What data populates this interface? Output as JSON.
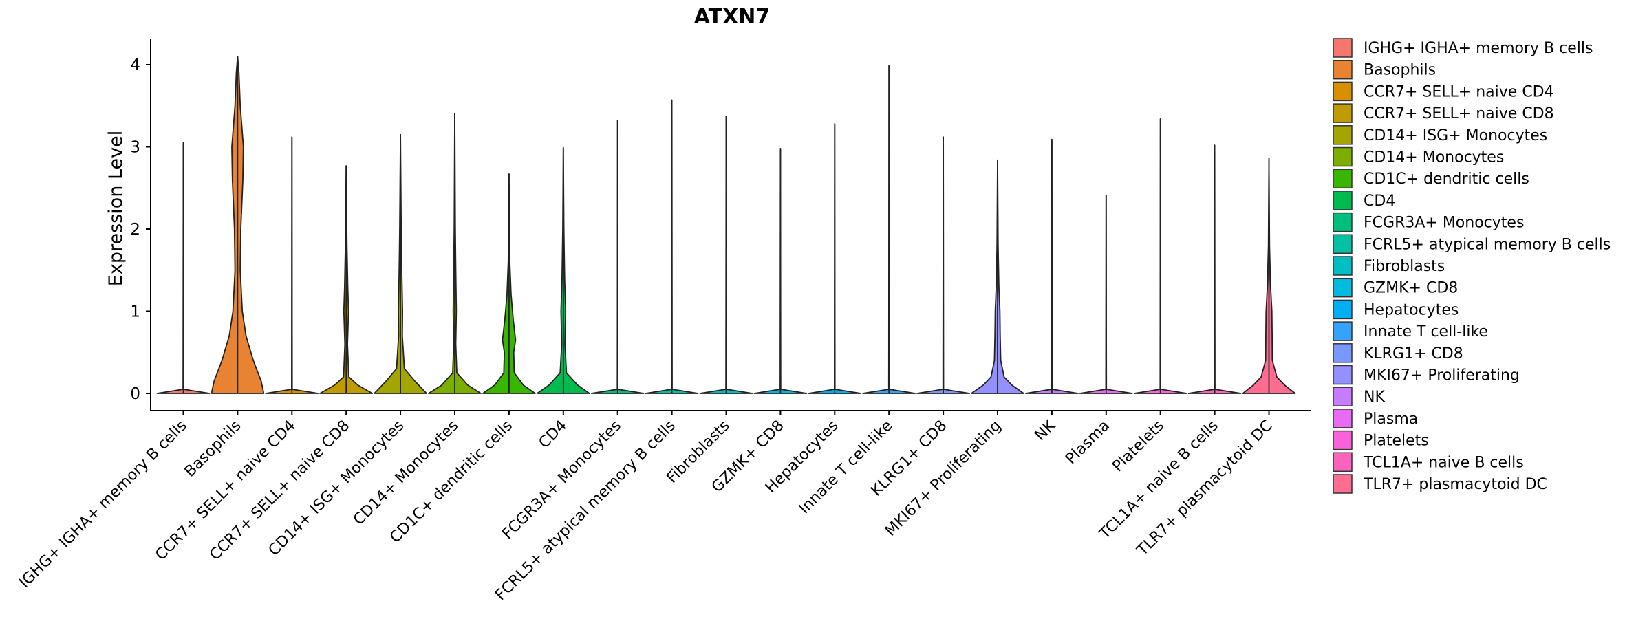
{
  "chart_data": {
    "type": "violin",
    "title": "ATXN7",
    "xlabel": "",
    "ylabel": "Expression Level",
    "ylim": [
      -0.2,
      4.3
    ],
    "yticks": [
      0,
      1,
      2,
      3,
      4
    ],
    "legend_position": "right",
    "categories": [
      "IGHG+ IGHA+ memory B cells",
      "Basophils",
      "CCR7+ SELL+ naive CD4",
      "CCR7+ SELL+ naive CD8",
      "CD14+ ISG+ Monocytes",
      "CD14+ Monocytes",
      "CD1C+ dendritic cells",
      "CD4",
      "FCGR3A+ Monocytes",
      "FCRL5+ atypical memory B cells",
      "Fibroblasts",
      "GZMK+ CD8",
      "Hepatocytes",
      "Innate T cell-like",
      "KLRG1+ CD8",
      "MKI67+ Proliferating",
      "NK",
      "Plasma",
      "Platelets",
      "TCL1A+ naive B cells",
      "TLR7+ plasmacytoid DC"
    ],
    "legend_labels": [
      " IGHG+ IGHA+ memory B cells",
      "Basophils",
      "CCR7+ SELL+ naive CD4",
      "CCR7+ SELL+ naive CD8",
      "CD14+ ISG+ Monocytes",
      "CD14+ Monocytes",
      "CD1C+ dendritic cells",
      "CD4",
      "FCGR3A+ Monocytes",
      "FCRL5+ atypical memory B cells",
      "Fibroblasts",
      "GZMK+ CD8",
      "Hepatocytes",
      "Innate T cell-like",
      "KLRG1+ CD8",
      "MKI67+ Proliferating",
      "NK",
      "Plasma",
      "Platelets",
      "TCL1A+ naive B cells",
      "TLR7+ plasmacytoid DC"
    ],
    "colors": [
      "#F8766D",
      "#EA8331",
      "#D89000",
      "#C09B00",
      "#A3A500",
      "#7CAE00",
      "#39B600",
      "#00BB4E",
      "#00BF7D",
      "#00C1A3",
      "#00BFC4",
      "#00BAE0",
      "#00B0F6",
      "#35A2FF",
      "#7997FF",
      "#9590FF",
      "#C77CFF",
      "#E76BF3",
      "#FA62DB",
      "#FF62BC",
      "#FF6C91"
    ],
    "series": [
      {
        "name": "IGHG+ IGHA+ memory B cells",
        "max": 3.05,
        "profile": [
          [
            0,
            1
          ],
          [
            0.05,
            0.01
          ],
          [
            3.05,
            0
          ]
        ]
      },
      {
        "name": "Basophils",
        "max": 4.1,
        "profile": [
          [
            0,
            1
          ],
          [
            0.15,
            0.9
          ],
          [
            0.4,
            0.6
          ],
          [
            0.7,
            0.32
          ],
          [
            1.0,
            0.18
          ],
          [
            1.5,
            0.1
          ],
          [
            2.0,
            0.12
          ],
          [
            2.6,
            0.2
          ],
          [
            3.0,
            0.22
          ],
          [
            3.5,
            0.1
          ],
          [
            3.9,
            0.05
          ],
          [
            4.1,
            0
          ]
        ]
      },
      {
        "name": "CCR7+ SELL+ naive CD4",
        "max": 3.12,
        "profile": [
          [
            0,
            1
          ],
          [
            0.05,
            0.01
          ],
          [
            3.12,
            0
          ]
        ]
      },
      {
        "name": "CCR7+ SELL+ naive CD8",
        "max": 2.77,
        "profile": [
          [
            0,
            1
          ],
          [
            0.1,
            0.45
          ],
          [
            0.2,
            0.1
          ],
          [
            0.6,
            0.05
          ],
          [
            1.0,
            0.09
          ],
          [
            1.3,
            0.06
          ],
          [
            1.8,
            0.03
          ],
          [
            2.77,
            0
          ]
        ]
      },
      {
        "name": "CD14+ ISG+ Monocytes",
        "max": 3.15,
        "profile": [
          [
            0,
            1
          ],
          [
            0.15,
            0.55
          ],
          [
            0.3,
            0.15
          ],
          [
            0.7,
            0.07
          ],
          [
            1.0,
            0.08
          ],
          [
            1.5,
            0.05
          ],
          [
            2.0,
            0.03
          ],
          [
            3.15,
            0
          ]
        ]
      },
      {
        "name": "CD14+ Monocytes",
        "max": 3.41,
        "profile": [
          [
            0,
            1
          ],
          [
            0.1,
            0.5
          ],
          [
            0.25,
            0.08
          ],
          [
            0.6,
            0.04
          ],
          [
            1.0,
            0.06
          ],
          [
            1.5,
            0.04
          ],
          [
            2.0,
            0.02
          ],
          [
            3.41,
            0
          ]
        ]
      },
      {
        "name": "CD1C+ dendritic cells",
        "max": 2.67,
        "profile": [
          [
            0,
            1
          ],
          [
            0.1,
            0.55
          ],
          [
            0.25,
            0.2
          ],
          [
            0.5,
            0.18
          ],
          [
            0.65,
            0.25
          ],
          [
            0.9,
            0.16
          ],
          [
            1.2,
            0.08
          ],
          [
            1.6,
            0.03
          ],
          [
            2.67,
            0
          ]
        ]
      },
      {
        "name": "CD4",
        "max": 2.99,
        "profile": [
          [
            0,
            1
          ],
          [
            0.1,
            0.55
          ],
          [
            0.25,
            0.12
          ],
          [
            0.6,
            0.06
          ],
          [
            1.0,
            0.09
          ],
          [
            1.4,
            0.05
          ],
          [
            2.0,
            0.02
          ],
          [
            2.99,
            0
          ]
        ]
      },
      {
        "name": "FCGR3A+ Monocytes",
        "max": 3.32,
        "profile": [
          [
            0,
            1
          ],
          [
            0.05,
            0.01
          ],
          [
            3.32,
            0
          ]
        ]
      },
      {
        "name": "FCRL5+ atypical memory B cells",
        "max": 3.57,
        "profile": [
          [
            0,
            1
          ],
          [
            0.05,
            0.01
          ],
          [
            3.57,
            0
          ]
        ]
      },
      {
        "name": "Fibroblasts",
        "max": 3.37,
        "profile": [
          [
            0,
            1
          ],
          [
            0.05,
            0.01
          ],
          [
            3.37,
            0
          ]
        ]
      },
      {
        "name": "GZMK+ CD8",
        "max": 2.98,
        "profile": [
          [
            0,
            1
          ],
          [
            0.05,
            0.01
          ],
          [
            2.98,
            0
          ]
        ]
      },
      {
        "name": "Hepatocytes",
        "max": 3.28,
        "profile": [
          [
            0,
            1
          ],
          [
            0.05,
            0.01
          ],
          [
            3.28,
            0
          ]
        ]
      },
      {
        "name": "Innate T cell-like",
        "max": 3.99,
        "profile": [
          [
            0,
            1
          ],
          [
            0.05,
            0.01
          ],
          [
            3.99,
            0
          ]
        ]
      },
      {
        "name": "KLRG1+ CD8",
        "max": 3.12,
        "profile": [
          [
            0,
            1
          ],
          [
            0.05,
            0.01
          ],
          [
            3.12,
            0
          ]
        ]
      },
      {
        "name": "MKI67+ Proliferating",
        "max": 2.84,
        "profile": [
          [
            0,
            1
          ],
          [
            0.1,
            0.55
          ],
          [
            0.2,
            0.25
          ],
          [
            0.4,
            0.12
          ],
          [
            0.7,
            0.1
          ],
          [
            1.0,
            0.09
          ],
          [
            1.3,
            0.05
          ],
          [
            1.8,
            0.02
          ],
          [
            2.84,
            0
          ]
        ]
      },
      {
        "name": "NK",
        "max": 3.09,
        "profile": [
          [
            0,
            1
          ],
          [
            0.05,
            0.01
          ],
          [
            3.09,
            0
          ]
        ]
      },
      {
        "name": "Plasma",
        "max": 2.41,
        "profile": [
          [
            0,
            1
          ],
          [
            0.05,
            0.01
          ],
          [
            2.41,
            0
          ]
        ]
      },
      {
        "name": "Platelets",
        "max": 3.34,
        "profile": [
          [
            0,
            1
          ],
          [
            0.05,
            0.01
          ],
          [
            3.34,
            0
          ]
        ]
      },
      {
        "name": "TCL1A+ naive B cells",
        "max": 3.02,
        "profile": [
          [
            0,
            1
          ],
          [
            0.05,
            0.01
          ],
          [
            3.02,
            0
          ]
        ]
      },
      {
        "name": "TLR7+ plasmacytoid DC",
        "max": 2.86,
        "profile": [
          [
            0,
            1
          ],
          [
            0.1,
            0.6
          ],
          [
            0.2,
            0.3
          ],
          [
            0.4,
            0.13
          ],
          [
            0.7,
            0.12
          ],
          [
            1.0,
            0.11
          ],
          [
            1.3,
            0.06
          ],
          [
            1.8,
            0.02
          ],
          [
            2.86,
            0
          ]
        ]
      }
    ]
  }
}
